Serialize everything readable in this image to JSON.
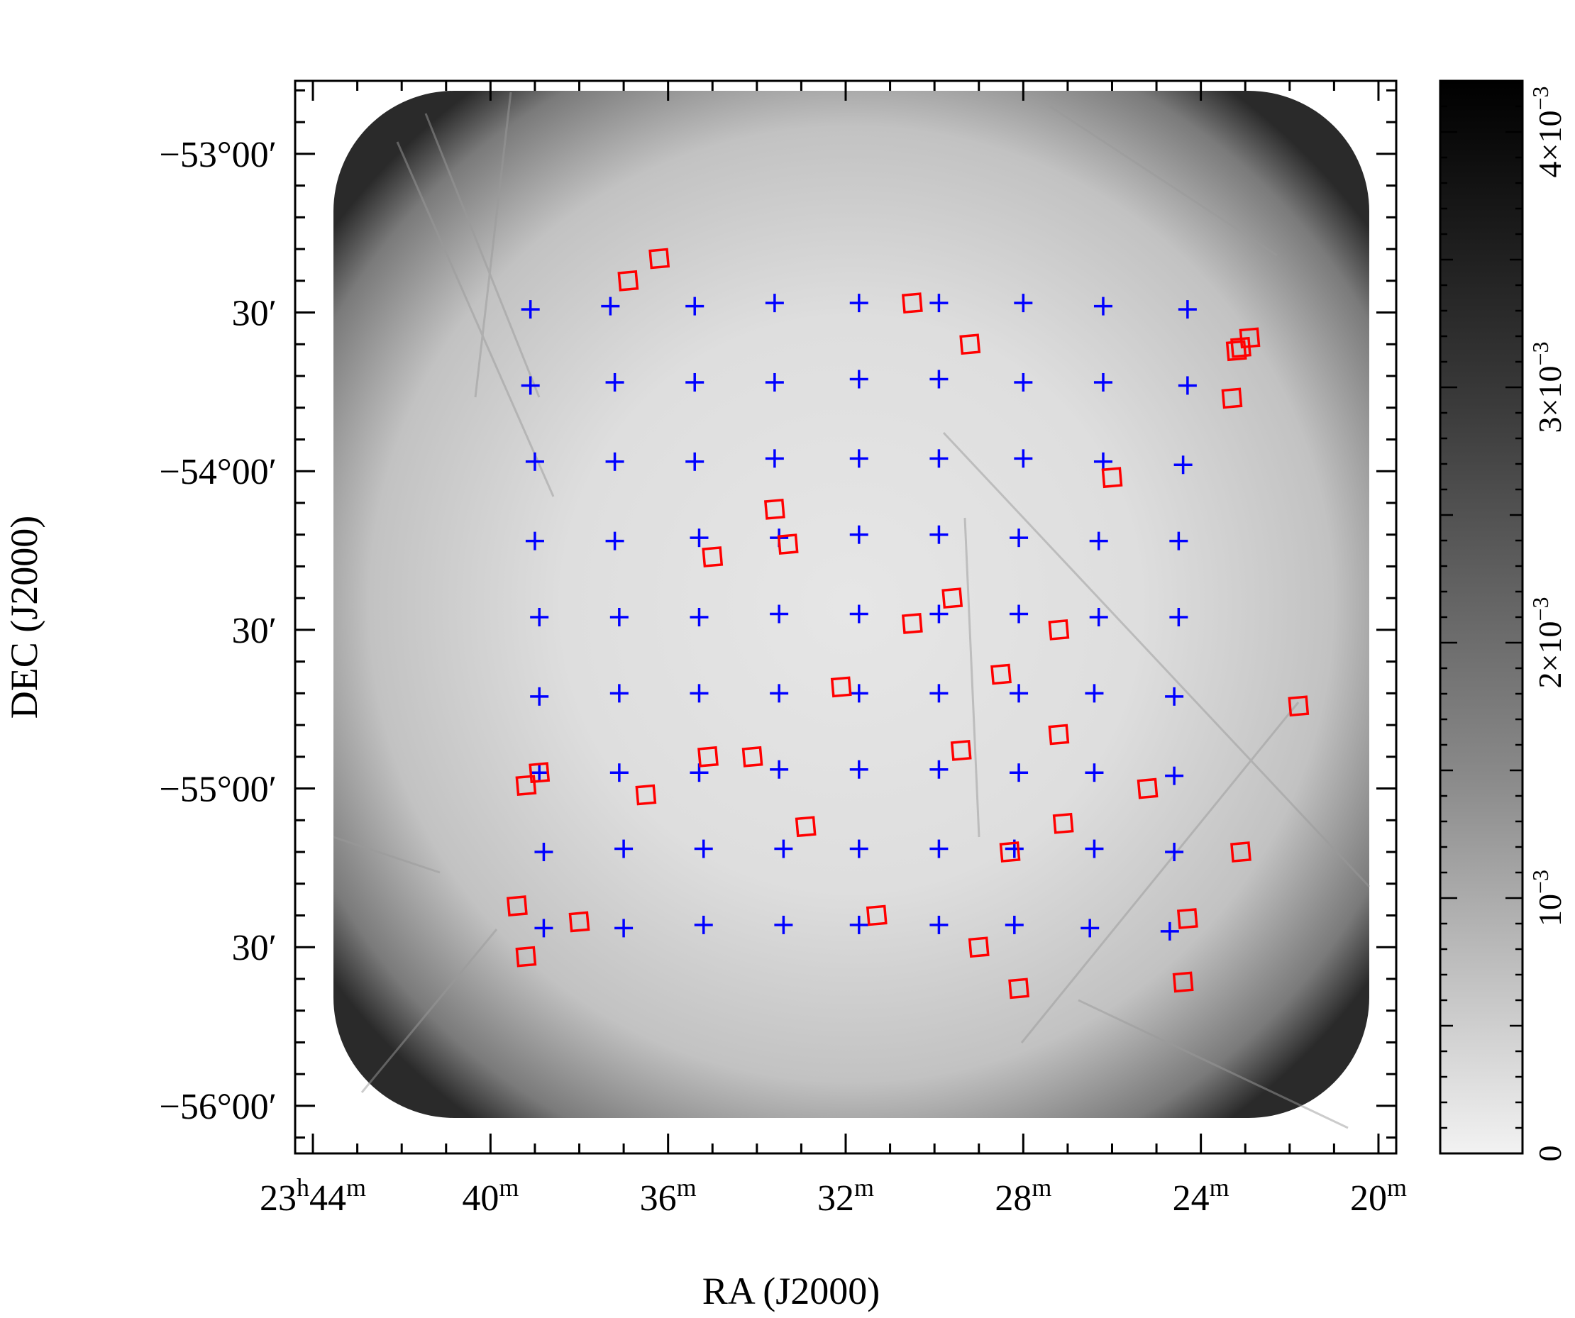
{
  "chart_data": {
    "type": "scatter",
    "xlabel": "RA (J2000)",
    "ylabel": "DEC (J2000)",
    "x_unit": "RA minutes past 23h",
    "y_unit": "degrees",
    "xlim": [
      44.4,
      19.6
    ],
    "ylim": [
      -56.15,
      -52.77
    ],
    "x_ticks": [
      {
        "value": 44,
        "h": "23",
        "m": "44"
      },
      {
        "value": 40,
        "h": "",
        "m": "40"
      },
      {
        "value": 36,
        "h": "",
        "m": "36"
      },
      {
        "value": 32,
        "h": "",
        "m": "32"
      },
      {
        "value": 28,
        "h": "",
        "m": "28"
      },
      {
        "value": 24,
        "h": "",
        "m": "24"
      },
      {
        "value": 20,
        "h": "",
        "m": "20"
      }
    ],
    "y_ticks": [
      {
        "value": -53.0,
        "label": "−53°00′"
      },
      {
        "value": -53.5,
        "label": "30′"
      },
      {
        "value": -54.0,
        "label": "−54°00′"
      },
      {
        "value": -54.5,
        "label": "30′"
      },
      {
        "value": -55.0,
        "label": "−55°00′"
      },
      {
        "value": -55.5,
        "label": "30′"
      },
      {
        "value": -56.0,
        "label": "−56°00′"
      }
    ],
    "colorbar": {
      "range": [
        0,
        0.0042
      ],
      "ticks": [
        {
          "value": 0,
          "mantissa": "0",
          "exp": ""
        },
        {
          "value": 0.001,
          "mantissa": "10",
          "exp": "−3"
        },
        {
          "value": 0.002,
          "mantissa": "2×10",
          "exp": "−3"
        },
        {
          "value": 0.003,
          "mantissa": "3×10",
          "exp": "−3"
        },
        {
          "value": 0.004,
          "mantissa": "4×10",
          "exp": "−3"
        }
      ]
    },
    "series": [
      {
        "marker": "cross",
        "color": "#0000ff",
        "points": [
          [
            39.1,
            -53.49
          ],
          [
            37.3,
            -53.48
          ],
          [
            35.4,
            -53.48
          ],
          [
            33.6,
            -53.47
          ],
          [
            31.7,
            -53.47
          ],
          [
            29.9,
            -53.47
          ],
          [
            28.0,
            -53.47
          ],
          [
            26.2,
            -53.48
          ],
          [
            24.3,
            -53.49
          ],
          [
            39.1,
            -53.73
          ],
          [
            37.2,
            -53.72
          ],
          [
            35.4,
            -53.72
          ],
          [
            33.6,
            -53.72
          ],
          [
            31.7,
            -53.71
          ],
          [
            29.9,
            -53.71
          ],
          [
            28.0,
            -53.72
          ],
          [
            26.2,
            -53.72
          ],
          [
            24.3,
            -53.73
          ],
          [
            39.0,
            -53.97
          ],
          [
            37.2,
            -53.97
          ],
          [
            35.4,
            -53.97
          ],
          [
            33.6,
            -53.96
          ],
          [
            31.7,
            -53.96
          ],
          [
            29.9,
            -53.96
          ],
          [
            28.0,
            -53.96
          ],
          [
            26.2,
            -53.97
          ],
          [
            24.4,
            -53.98
          ],
          [
            39.0,
            -54.22
          ],
          [
            37.2,
            -54.22
          ],
          [
            35.3,
            -54.21
          ],
          [
            33.5,
            -54.21
          ],
          [
            31.7,
            -54.2
          ],
          [
            29.9,
            -54.2
          ],
          [
            28.1,
            -54.21
          ],
          [
            26.3,
            -54.22
          ],
          [
            24.5,
            -54.22
          ],
          [
            38.9,
            -54.46
          ],
          [
            37.1,
            -54.46
          ],
          [
            35.3,
            -54.46
          ],
          [
            33.5,
            -54.45
          ],
          [
            31.7,
            -54.45
          ],
          [
            29.9,
            -54.45
          ],
          [
            28.1,
            -54.45
          ],
          [
            26.3,
            -54.46
          ],
          [
            24.5,
            -54.46
          ],
          [
            38.9,
            -54.71
          ],
          [
            37.1,
            -54.7
          ],
          [
            35.3,
            -54.7
          ],
          [
            33.5,
            -54.7
          ],
          [
            31.7,
            -54.7
          ],
          [
            29.9,
            -54.7
          ],
          [
            28.1,
            -54.7
          ],
          [
            26.4,
            -54.7
          ],
          [
            24.6,
            -54.71
          ],
          [
            38.9,
            -54.95
          ],
          [
            37.1,
            -54.95
          ],
          [
            35.3,
            -54.95
          ],
          [
            33.5,
            -54.94
          ],
          [
            31.7,
            -54.94
          ],
          [
            29.9,
            -54.94
          ],
          [
            28.1,
            -54.95
          ],
          [
            26.4,
            -54.95
          ],
          [
            24.6,
            -54.96
          ],
          [
            38.8,
            -55.2
          ],
          [
            37.0,
            -55.19
          ],
          [
            35.2,
            -55.19
          ],
          [
            33.4,
            -55.19
          ],
          [
            31.7,
            -55.19
          ],
          [
            29.9,
            -55.19
          ],
          [
            28.2,
            -55.19
          ],
          [
            26.4,
            -55.19
          ],
          [
            24.6,
            -55.2
          ],
          [
            38.8,
            -55.44
          ],
          [
            37.0,
            -55.44
          ],
          [
            35.2,
            -55.43
          ],
          [
            33.4,
            -55.43
          ],
          [
            31.7,
            -55.43
          ],
          [
            29.9,
            -55.43
          ],
          [
            28.2,
            -55.43
          ],
          [
            26.5,
            -55.44
          ],
          [
            24.7,
            -55.45
          ]
        ]
      },
      {
        "marker": "square",
        "color": "#ff0000",
        "points": [
          [
            36.2,
            -53.33
          ],
          [
            36.9,
            -53.4
          ],
          [
            30.5,
            -53.47
          ],
          [
            29.2,
            -53.6
          ],
          [
            22.9,
            -53.58
          ],
          [
            23.1,
            -53.61
          ],
          [
            23.2,
            -53.62
          ],
          [
            23.3,
            -53.77
          ],
          [
            26.0,
            -54.02
          ],
          [
            33.6,
            -54.12
          ],
          [
            33.3,
            -54.23
          ],
          [
            35.0,
            -54.27
          ],
          [
            29.6,
            -54.4
          ],
          [
            30.5,
            -54.48
          ],
          [
            27.2,
            -54.5
          ],
          [
            28.5,
            -54.64
          ],
          [
            32.1,
            -54.68
          ],
          [
            21.8,
            -54.74
          ],
          [
            27.2,
            -54.83
          ],
          [
            29.4,
            -54.88
          ],
          [
            35.1,
            -54.9
          ],
          [
            34.1,
            -54.9
          ],
          [
            38.9,
            -54.95
          ],
          [
            39.2,
            -54.99
          ],
          [
            36.5,
            -55.02
          ],
          [
            25.2,
            -55.0
          ],
          [
            27.1,
            -55.11
          ],
          [
            32.9,
            -55.12
          ],
          [
            28.3,
            -55.2
          ],
          [
            23.1,
            -55.2
          ],
          [
            39.4,
            -55.37
          ],
          [
            38.0,
            -55.42
          ],
          [
            31.3,
            -55.4
          ],
          [
            24.3,
            -55.41
          ],
          [
            39.2,
            -55.53
          ],
          [
            29.0,
            -55.5
          ],
          [
            24.4,
            -55.61
          ],
          [
            28.1,
            -55.63
          ]
        ]
      }
    ],
    "colors": {
      "cross": "#0000ff",
      "square": "#ff0000",
      "map_edge": "#2a2a2a",
      "map_center": "#dcdcdc"
    }
  }
}
